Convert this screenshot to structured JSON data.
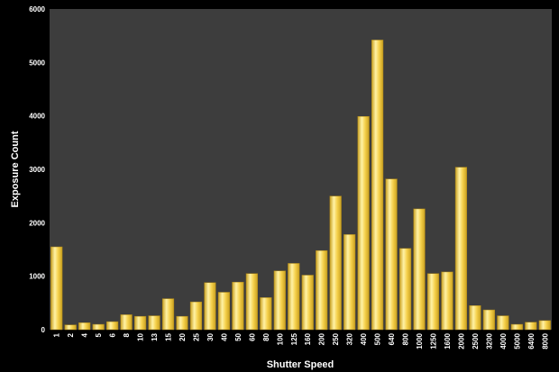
{
  "chart_data": {
    "type": "bar",
    "xlabel": "Shutter Speed",
    "ylabel": "Exposure Count",
    "ylim": [
      0,
      6000
    ],
    "yticks": [
      "0",
      "1000",
      "2000",
      "3000",
      "4000",
      "5000",
      "6000"
    ],
    "grid": false,
    "legend": "none",
    "categories": [
      "1",
      "2",
      "4",
      "5",
      "6",
      "8",
      "10",
      "13",
      "15",
      "20",
      "25",
      "30",
      "40",
      "50",
      "60",
      "80",
      "100",
      "125",
      "160",
      "200",
      "250",
      "320",
      "400",
      "500",
      "640",
      "800",
      "1000",
      "1250",
      "1600",
      "2000",
      "2500",
      "3200",
      "4000",
      "5000",
      "6400",
      "8000"
    ],
    "values": [
      1550,
      90,
      130,
      100,
      150,
      280,
      250,
      260,
      580,
      250,
      520,
      880,
      700,
      890,
      1050,
      600,
      1100,
      1240,
      1020,
      1480,
      2500,
      1780,
      3990,
      5420,
      2820,
      1520,
      2260,
      1050,
      1080,
      3040,
      450,
      370,
      260,
      100,
      140,
      170
    ],
    "colors": {
      "plot_bg": "#3d3d3d",
      "page_bg": "#000000",
      "bar_light": "#fff2a6",
      "bar_mid": "#f5d04a",
      "bar_dark": "#c9a020"
    }
  }
}
